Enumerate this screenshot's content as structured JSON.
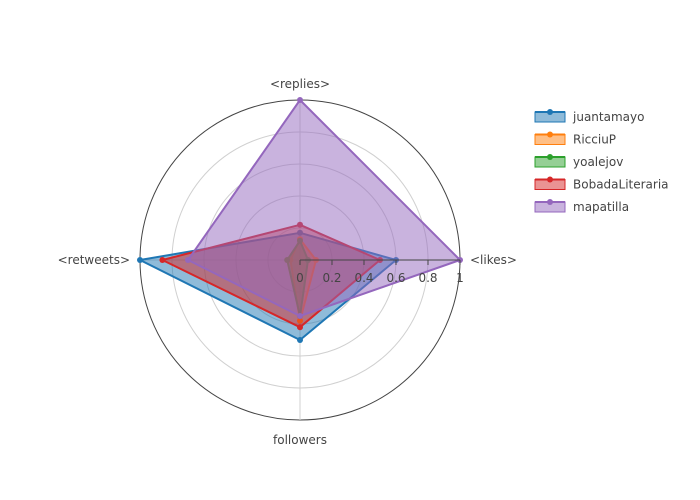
{
  "chart_data": {
    "type": "radar",
    "axes": [
      "<likes>",
      "<replies>",
      "<retweets>",
      "followers"
    ],
    "radial_range": [
      0,
      1
    ],
    "radial_ticks": [
      "0",
      "0.2",
      "0.4",
      "0.6",
      "0.8",
      "1"
    ],
    "radial_tick_values": [
      0,
      0.2,
      0.4,
      0.6,
      0.8,
      1
    ],
    "grid": true,
    "legend_position": "top-right",
    "fill": "toself",
    "series": [
      {
        "name": "juantamayo",
        "color": "#1f77b4",
        "values": [
          0.6,
          0.17,
          1.0,
          0.5
        ]
      },
      {
        "name": "RicciuP",
        "color": "#ff7f0e",
        "values": [
          0.1,
          0.13,
          0.06,
          0.38
        ]
      },
      {
        "name": "yoalejov",
        "color": "#2ca02c",
        "values": [
          0.05,
          0.12,
          0.08,
          0.35
        ]
      },
      {
        "name": "BobadaLiteraria",
        "color": "#d62728",
        "values": [
          0.5,
          0.22,
          0.86,
          0.42
        ]
      },
      {
        "name": "mapatilla",
        "color": "#9467bd",
        "values": [
          1.0,
          1.0,
          0.7,
          0.35
        ]
      }
    ]
  }
}
